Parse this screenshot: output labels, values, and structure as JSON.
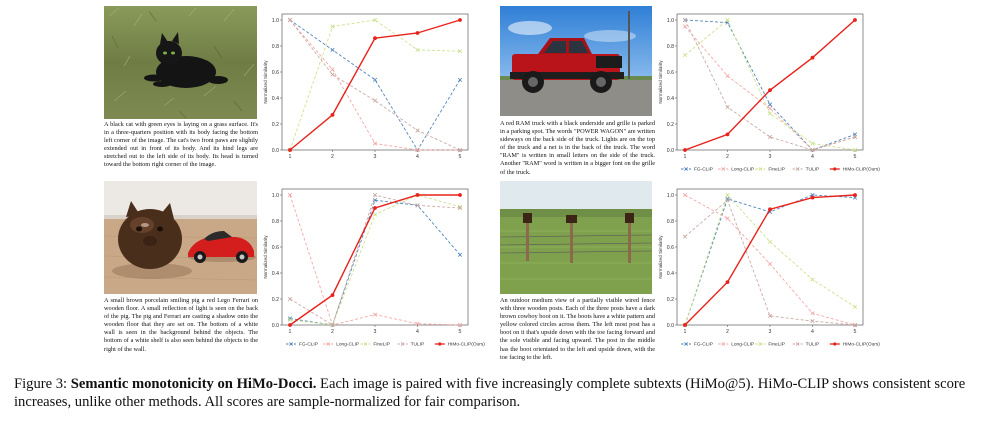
{
  "colors": {
    "FG-CLIP": "#4a7fb8",
    "Long-CLIP": "#f4a3a3",
    "FineLIP": "#c9e08a",
    "TULIP": "#c8a6a0",
    "HiMo-CLIP(Ours)": "#e8221b"
  },
  "markers": {
    "FG-CLIP": "x",
    "Long-CLIP": "x",
    "FineLIP": "x",
    "TULIP": "x",
    "HiMo-CLIP(Ours)": "dot"
  },
  "legend_labels": [
    "FG-CLIP",
    "Long-CLIP",
    "FineLIP",
    "TULIP",
    "HiMo-CLIP(Ours)"
  ],
  "ylabel": "Normalized Similarity",
  "panels": [
    {
      "image": "black-cat-on-grass",
      "caption": "A black cat with green eyes is laying on a grass surface. It's in a three-quarters position with its body facing the bottom left corner of the image. The cat's two front paws are slightly extended out in front of its body. And its hind legs are stretched out to the left side of its body. Its head is turned toward the bottom right corner of the image."
    },
    {
      "image": "red-ram-truck",
      "caption": "A red RAM truck with a black underside and grille is parked in a parking spot. The words \"POWER WAGON\" are written sideways on the back side of the truck. Lights are on the top of the truck and a net is in the back of the truck. The word \"RAM\" is written in small letters on the side of the truck. Another \"RAM\" word is written in a bigger font on the grille of the truck."
    },
    {
      "image": "porcelain-pig-and-ferrari",
      "caption": "A small brown porcelain smiling pig a red Lego Ferrari on wooden floor. A small reflection of light is seen on the back of the pig. The pig and Ferrari are casting a shadow onto the wooden floor that they are set on. The bottom of a white wall is seen in the background behind the objects. The bottom of a white shelf is also seen behind the objects to the right of the wall."
    },
    {
      "image": "wire-fence-with-boots",
      "caption": "An outdoor medium view of a partially visible wired fence with three wooden posts. Each of the three posts have a dark brown cowboy boot on it. The boots have a white pattern and yellow colored circles across them. The left most post has a boot on it that's upside down with the toe facing forward and the sole visible and facing upward. The post in the middle has the boot orientated to the left and upside down, with the toe facing to the left."
    }
  ],
  "chart_data": [
    {
      "type": "line",
      "x": [
        1,
        2,
        3,
        4,
        5
      ],
      "ylim": [
        0,
        1.0
      ],
      "yticks": [
        "0.0",
        "0.2",
        "0.4",
        "0.6",
        "0.8",
        "1.0"
      ],
      "xticks": [
        "1",
        "2",
        "3",
        "4",
        "5"
      ],
      "ylabel": "Normalized Similarity",
      "legend": "none",
      "series": [
        {
          "name": "FG-CLIP",
          "values": [
            1.0,
            0.77,
            0.54,
            0.0,
            0.54
          ]
        },
        {
          "name": "Long-CLIP",
          "values": [
            1.0,
            0.62,
            0.05,
            0.0,
            0.0
          ]
        },
        {
          "name": "FineLIP",
          "values": [
            0.0,
            0.95,
            1.0,
            0.77,
            0.76
          ]
        },
        {
          "name": "TULIP",
          "values": [
            1.0,
            0.58,
            0.38,
            0.15,
            0.0
          ]
        },
        {
          "name": "HiMo-CLIP(Ours)",
          "values": [
            0.0,
            0.27,
            0.86,
            0.9,
            1.0
          ]
        }
      ]
    },
    {
      "type": "line",
      "x": [
        1,
        2,
        3,
        4,
        5
      ],
      "ylim": [
        0,
        1.0
      ],
      "yticks": [
        "0.0",
        "0.2",
        "0.4",
        "0.6",
        "0.8",
        "1.0"
      ],
      "xticks": [
        "1",
        "2",
        "3",
        "4",
        "5"
      ],
      "ylabel": "Normalized Similarity",
      "legend": "bottom",
      "series": [
        {
          "name": "FG-CLIP",
          "values": [
            1.0,
            0.98,
            0.35,
            0.0,
            0.12
          ]
        },
        {
          "name": "Long-CLIP",
          "values": [
            0.95,
            0.57,
            0.32,
            0.0,
            0.1
          ]
        },
        {
          "name": "FineLIP",
          "values": [
            0.73,
            1.0,
            0.28,
            0.05,
            0.0
          ]
        },
        {
          "name": "TULIP",
          "values": [
            1.0,
            0.33,
            0.1,
            0.0,
            0.1
          ]
        },
        {
          "name": "HiMo-CLIP(Ours)",
          "values": [
            0.0,
            0.12,
            0.46,
            0.71,
            1.0
          ]
        }
      ]
    },
    {
      "type": "line",
      "x": [
        1,
        2,
        3,
        4,
        5
      ],
      "ylim": [
        0,
        1.0
      ],
      "yticks": [
        "0.0",
        "0.2",
        "0.4",
        "0.6",
        "0.8",
        "1.0"
      ],
      "xticks": [
        "1",
        "2",
        "3",
        "4",
        "5"
      ],
      "ylabel": "Normalized Similarity",
      "legend": "bottom",
      "series": [
        {
          "name": "FG-CLIP",
          "values": [
            0.05,
            0.0,
            0.96,
            0.92,
            0.54
          ]
        },
        {
          "name": "Long-CLIP",
          "values": [
            1.0,
            0.0,
            0.08,
            0.01,
            0.0
          ]
        },
        {
          "name": "FineLIP",
          "values": [
            0.04,
            0.0,
            0.85,
            1.0,
            0.91
          ]
        },
        {
          "name": "TULIP",
          "values": [
            0.2,
            0.0,
            1.0,
            0.92,
            0.9
          ]
        },
        {
          "name": "HiMo-CLIP(Ours)",
          "values": [
            0.0,
            0.23,
            0.9,
            1.0,
            1.0
          ]
        }
      ]
    },
    {
      "type": "line",
      "x": [
        1,
        2,
        3,
        4,
        5
      ],
      "ylim": [
        0,
        1.0
      ],
      "yticks": [
        "0.0",
        "0.2",
        "0.4",
        "0.6",
        "0.8",
        "1.0"
      ],
      "xticks": [
        "1",
        "2",
        "3",
        "4",
        "5"
      ],
      "ylabel": "Normalized Similarity",
      "legend": "bottom",
      "series": [
        {
          "name": "FG-CLIP",
          "values": [
            0.0,
            0.97,
            0.87,
            1.0,
            0.98
          ]
        },
        {
          "name": "Long-CLIP",
          "values": [
            1.0,
            0.82,
            0.47,
            0.09,
            0.0
          ]
        },
        {
          "name": "FineLIP",
          "values": [
            0.0,
            1.0,
            0.64,
            0.35,
            0.14
          ]
        },
        {
          "name": "TULIP",
          "values": [
            0.68,
            0.96,
            0.07,
            0.03,
            0.0
          ]
        },
        {
          "name": "HiMo-CLIP(Ours)",
          "values": [
            0.0,
            0.33,
            0.89,
            0.98,
            1.0
          ]
        }
      ]
    }
  ],
  "figure_caption": {
    "label": "Figure 3:",
    "bold": "Semantic monotonicity on HiMo-Docci.",
    "rest": " Each image is paired with five increasingly complete subtexts (HiMo@5). HiMo-CLIP shows consistent score increases, unlike other methods. All scores are sample-normalized for fair comparison."
  }
}
